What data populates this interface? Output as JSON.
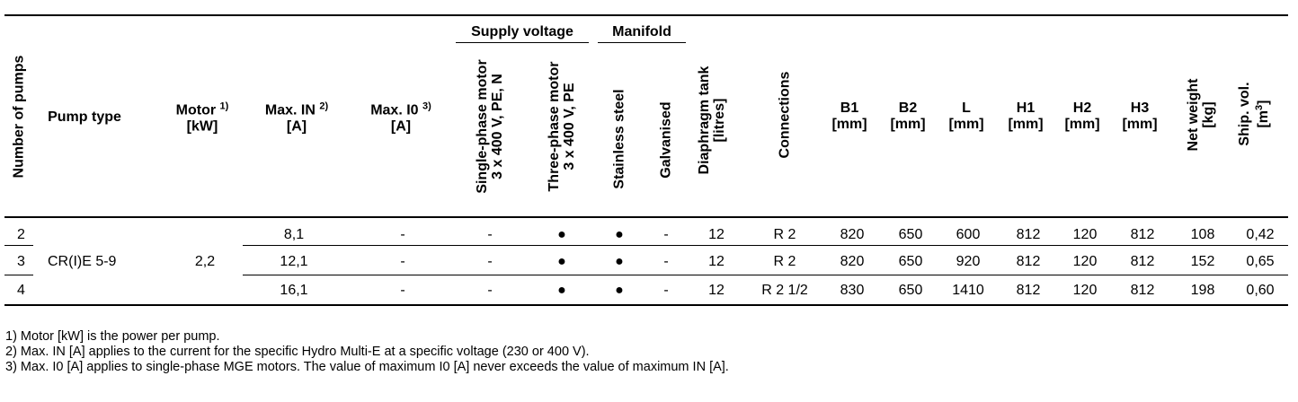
{
  "header": {
    "number_of_pumps": "Number of pumps",
    "pump_type": "Pump type",
    "motor": "Motor",
    "motor_sup": "1)",
    "motor_unit": "[kW]",
    "max_in": "Max. IN",
    "max_in_sup": "2)",
    "max_in_unit": "[A]",
    "max_i0": "Max. I0",
    "max_i0_sup": "3)",
    "max_i0_unit": "[A]",
    "supply_voltage": "Supply voltage",
    "manifold": "Manifold",
    "single_phase_1": "Single-phase motor",
    "single_phase_2": "3 x 400 V, PE, N",
    "three_phase_1": "Three-phase motor",
    "three_phase_2": "3 x 400 V, PE",
    "stainless": "Stainless steel",
    "galvanised": "Galvanised",
    "diaphragm_1": "Diaphragm tank",
    "diaphragm_2": "[litres]",
    "connections": "Connections",
    "b1": "B1",
    "b2": "B2",
    "l": "L",
    "h1": "H1",
    "h2": "H2",
    "h3": "H3",
    "mm": "[mm]",
    "net_weight_1": "Net weight",
    "net_weight_2": "[kg]",
    "ship_vol_1": "Ship. vol.",
    "ship_vol_2": "[m",
    "ship_vol_sup": "3",
    "ship_vol_3": "]"
  },
  "group": {
    "pump_type": "CR(I)E 5-9",
    "motor": "2,2"
  },
  "rows": [
    {
      "pumps": "2",
      "max_in": "8,1",
      "max_i0": "-",
      "single": "-",
      "three": "●",
      "stainless": "●",
      "galv": "-",
      "tank": "12",
      "conn": "R 2",
      "b1": "820",
      "b2": "650",
      "l": "600",
      "h1": "812",
      "h2": "120",
      "h3": "812",
      "weight": "108",
      "vol": "0,42"
    },
    {
      "pumps": "3",
      "max_in": "12,1",
      "max_i0": "-",
      "single": "-",
      "three": "●",
      "stainless": "●",
      "galv": "-",
      "tank": "12",
      "conn": "R 2",
      "b1": "820",
      "b2": "650",
      "l": "920",
      "h1": "812",
      "h2": "120",
      "h3": "812",
      "weight": "152",
      "vol": "0,65"
    },
    {
      "pumps": "4",
      "max_in": "16,1",
      "max_i0": "-",
      "single": "-",
      "three": "●",
      "stainless": "●",
      "galv": "-",
      "tank": "12",
      "conn": "R 2 1/2",
      "b1": "830",
      "b2": "650",
      "l": "1410",
      "h1": "812",
      "h2": "120",
      "h3": "812",
      "weight": "198",
      "vol": "0,60"
    }
  ],
  "footnotes": [
    "1) Motor [kW] is the power per pump.",
    "2) Max. IN [A] applies to the current for the specific Hydro Multi-E at a specific voltage (230 or 400 V).",
    "3) Max. I0 [A] applies to single-phase MGE motors. The value of maximum I0 [A] never exceeds the value of maximum IN [A]."
  ]
}
